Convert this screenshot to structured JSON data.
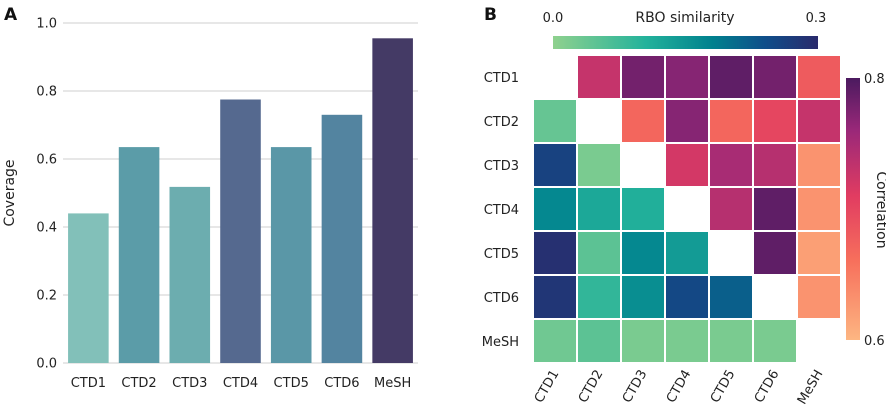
{
  "chart_data": [
    {
      "panel_label": "A",
      "type": "bar",
      "ylabel": "Coverage",
      "xlabel": "",
      "ylim": [
        0.0,
        1.0
      ],
      "yticks": [
        "0.0",
        "0.2",
        "0.4",
        "0.6",
        "0.8",
        "1.0"
      ],
      "grid": "horizontal",
      "categories": [
        "CTD1",
        "CTD2",
        "CTD3",
        "CTD4",
        "CTD5",
        "CTD6",
        "MeSH"
      ],
      "values": [
        0.44,
        0.635,
        0.518,
        0.775,
        0.635,
        0.73,
        0.955
      ],
      "colors": [
        "#82c0b9",
        "#5b9ca8",
        "#6cadaf",
        "#55698f",
        "#5a97a7",
        "#5384a0",
        "#443a65"
      ]
    },
    {
      "panel_label": "B",
      "type": "heatmap",
      "rows": [
        "CTD1",
        "CTD2",
        "CTD3",
        "CTD4",
        "CTD5",
        "CTD6",
        "MeSH"
      ],
      "cols": [
        "CTD1",
        "CTD2",
        "CTD3",
        "CTD4",
        "CTD5",
        "CTD6",
        "MeSH"
      ],
      "upper_triangle_label": "Correlation",
      "lower_triangle_label": "RBO similarity",
      "rbo_colorbar": {
        "title": "RBO similarity",
        "min_label": "0.0",
        "max_label": "0.3",
        "range": [
          0.0,
          0.3
        ]
      },
      "corr_colorbar": {
        "title": "Correlation",
        "min_label": "0.6",
        "max_label": "0.8",
        "range": [
          0.6,
          0.8
        ]
      },
      "correlation_upper": [
        [
          null,
          0.73,
          0.78,
          0.77,
          0.79,
          0.78,
          0.68
        ],
        [
          null,
          null,
          0.67,
          0.77,
          0.67,
          0.7,
          0.73
        ],
        [
          null,
          null,
          null,
          0.72,
          0.75,
          0.74,
          0.63
        ],
        [
          null,
          null,
          null,
          null,
          0.74,
          0.79,
          0.63
        ],
        [
          null,
          null,
          null,
          null,
          null,
          0.79,
          0.62
        ],
        [
          null,
          null,
          null,
          null,
          null,
          null,
          0.63
        ],
        [
          null,
          null,
          null,
          null,
          null,
          null,
          null
        ]
      ],
      "rbo_lower": [
        [
          null,
          null,
          null,
          null,
          null,
          null,
          null
        ],
        [
          0.04,
          null,
          null,
          null,
          null,
          null,
          null
        ],
        [
          0.26,
          0.02,
          null,
          null,
          null,
          null,
          null
        ],
        [
          0.17,
          0.12,
          0.11,
          null,
          null,
          null,
          null
        ],
        [
          0.29,
          0.05,
          0.17,
          0.14,
          null,
          null,
          null
        ],
        [
          0.28,
          0.09,
          0.16,
          0.25,
          0.22,
          null,
          null
        ],
        [
          0.03,
          0.05,
          0.02,
          0.02,
          0.02,
          0.02,
          null
        ]
      ]
    }
  ]
}
